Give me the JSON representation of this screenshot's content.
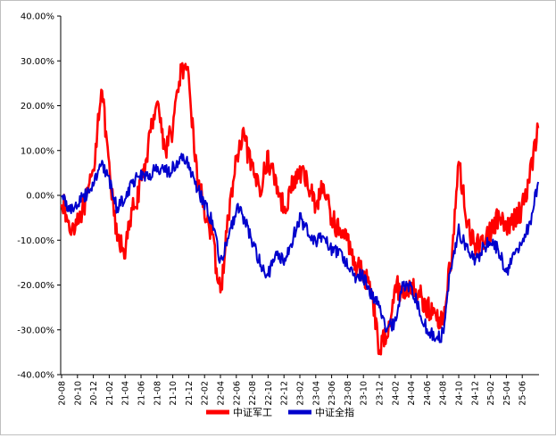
{
  "chart_data": {
    "type": "line",
    "title": "",
    "xlabel": "",
    "ylabel": "",
    "ylim": [
      -40,
      40
    ],
    "y_ticks": [
      40,
      30,
      20,
      10,
      0,
      -10,
      -20,
      -30,
      -40
    ],
    "y_tick_labels": [
      "40.00%",
      "30.00%",
      "20.00%",
      "10.00%",
      "0.00%",
      "-10.00%",
      "-20.00%",
      "-30.00%",
      "-40.00%"
    ],
    "x_tick_labels": [
      "20-08",
      "20-10",
      "20-12",
      "21-02",
      "21-04",
      "21-06",
      "21-08",
      "21-10",
      "21-12",
      "22-02",
      "22-04",
      "22-06",
      "22-08",
      "22-10",
      "22-12",
      "23-02",
      "23-04",
      "23-06",
      "23-08",
      "23-10",
      "23-12",
      "24-02",
      "24-04",
      "24-06",
      "24-08",
      "24-10",
      "24-12",
      "25-02",
      "25-04",
      "25-06"
    ],
    "legend_position": "bottom",
    "grid": false,
    "series": [
      {
        "name": "中证军工",
        "color": "#ff0000",
        "x": [
          "20-08",
          "20-09",
          "20-10",
          "20-11",
          "20-12",
          "21-01",
          "21-02",
          "21-03",
          "21-04",
          "21-05",
          "21-06",
          "21-07",
          "21-08",
          "21-09",
          "21-10",
          "21-11",
          "21-12",
          "22-01",
          "22-02",
          "22-03",
          "22-04",
          "22-05",
          "22-06",
          "22-07",
          "22-08",
          "22-09",
          "22-10",
          "22-11",
          "22-12",
          "23-01",
          "23-02",
          "23-03",
          "23-04",
          "23-05",
          "23-06",
          "23-07",
          "23-08",
          "23-09",
          "23-10",
          "23-11",
          "23-12",
          "24-01",
          "24-02",
          "24-03",
          "24-04",
          "24-05",
          "24-06",
          "24-07",
          "24-08",
          "24-09",
          "24-10",
          "24-11",
          "24-12",
          "25-01",
          "25-02",
          "25-03",
          "25-04",
          "25-05",
          "25-06",
          "25-07",
          "25-08"
        ],
        "values": [
          0,
          -8,
          -5,
          -2,
          5,
          25,
          5,
          -10,
          -12,
          -3,
          2,
          12,
          22,
          10,
          15,
          28,
          26,
          5,
          -3,
          -10,
          -22,
          -5,
          8,
          13,
          5,
          2,
          8,
          3,
          -3,
          2,
          5,
          3,
          -2,
          2,
          -5,
          -8,
          -10,
          -15,
          -18,
          -20,
          -35,
          -30,
          -20,
          -22,
          -20,
          -22,
          -25,
          -27,
          -28,
          -15,
          7,
          -5,
          -12,
          -10,
          -8,
          -5,
          -8,
          -5,
          -3,
          5,
          15
        ]
      },
      {
        "name": "中证全指",
        "color": "#0000cc",
        "x": [
          "20-08",
          "20-09",
          "20-10",
          "20-11",
          "20-12",
          "21-01",
          "21-02",
          "21-03",
          "21-04",
          "21-05",
          "21-06",
          "21-07",
          "21-08",
          "21-09",
          "21-10",
          "21-11",
          "21-12",
          "22-01",
          "22-02",
          "22-03",
          "22-04",
          "22-05",
          "22-06",
          "22-07",
          "22-08",
          "22-09",
          "22-10",
          "22-11",
          "22-12",
          "23-01",
          "23-02",
          "23-03",
          "23-04",
          "23-05",
          "23-06",
          "23-07",
          "23-08",
          "23-09",
          "23-10",
          "23-11",
          "23-12",
          "24-01",
          "24-02",
          "24-03",
          "24-04",
          "24-05",
          "24-06",
          "24-07",
          "24-08",
          "24-09",
          "24-10",
          "24-11",
          "24-12",
          "25-01",
          "25-02",
          "25-03",
          "25-04",
          "25-05",
          "25-06",
          "25-07",
          "25-08"
        ],
        "values": [
          0,
          -3,
          -2,
          0,
          3,
          7,
          3,
          -3,
          0,
          3,
          5,
          4,
          6,
          5,
          6,
          8,
          7,
          2,
          -2,
          -6,
          -15,
          -10,
          -3,
          -5,
          -10,
          -15,
          -18,
          -12,
          -15,
          -10,
          -5,
          -8,
          -10,
          -9,
          -12,
          -13,
          -15,
          -18,
          -18,
          -22,
          -25,
          -30,
          -28,
          -20,
          -20,
          -25,
          -30,
          -32,
          -31,
          -16,
          -8,
          -12,
          -15,
          -12,
          -10,
          -12,
          -18,
          -12,
          -11,
          -6,
          3
        ]
      }
    ]
  }
}
